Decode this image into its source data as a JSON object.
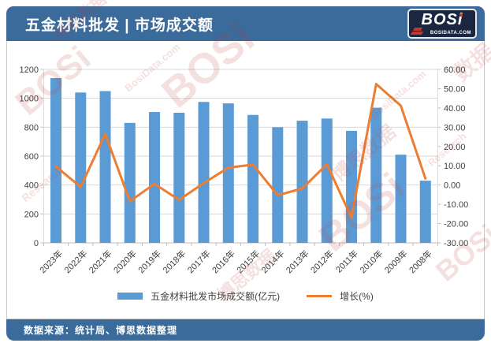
{
  "header": {
    "title": "五金材料批发 | 市场成交额",
    "logo": {
      "text": "BOSi",
      "site": "BOSIDATA.COM"
    }
  },
  "footer": {
    "source": "数据来源：统计局、博思数据整理"
  },
  "watermarks": [
    "BOSi",
    "博思数据",
    "BosiData.com",
    "BOSi",
    "Research",
    "博思数据",
    "BOSi",
    "BosiData.com",
    "数据",
    "Research",
    "博思数据",
    "BOSi"
  ],
  "colors": {
    "band_blue": "#3A6B9B",
    "bar_blue": "#5B9BD5",
    "line_orange": "#ED7D31",
    "grid": "#D9D9D9",
    "axis_line": "#BFBFBF",
    "axis_text": "#404040",
    "watermark_red": "#C03C3C"
  },
  "chart_data": {
    "type": "bar",
    "subtype": "bar+line combo, dual axis",
    "title": "五金材料批发 | 市场成交额",
    "categories": [
      "2023年",
      "2022年",
      "2021年",
      "2020年",
      "2019年",
      "2018年",
      "2017年",
      "2016年",
      "2015年",
      "2014年",
      "2013年",
      "2012年",
      "2011年",
      "2010年",
      "2009年",
      "2008年"
    ],
    "series": [
      {
        "name": "五金材料批发市场成交额(亿元)",
        "type": "bar",
        "axis": "left",
        "color": "#5B9BD5",
        "values": [
          1140,
          1040,
          1050,
          830,
          905,
          900,
          975,
          965,
          885,
          800,
          845,
          860,
          775,
          935,
          610,
          430
        ]
      },
      {
        "name": "增长(%)",
        "type": "line",
        "axis": "right",
        "color": "#ED7D31",
        "values": [
          9.6,
          -1.0,
          26.5,
          -8.4,
          0.6,
          -7.7,
          1.0,
          9.0,
          10.6,
          -5.3,
          -1.8,
          10.8,
          -16.9,
          52.4,
          41.2,
          3.4
        ]
      }
    ],
    "left_axis": {
      "min": 0,
      "max": 1200,
      "step": 200,
      "decimals": 0
    },
    "right_axis": {
      "min": -30,
      "max": 60,
      "step": 10,
      "decimals": 2
    },
    "grid": "horizontal gridlines from left axis",
    "legend_position": "bottom"
  }
}
